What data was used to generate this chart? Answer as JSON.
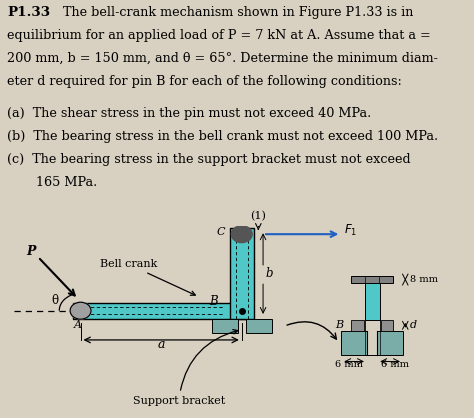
{
  "bg_page": "#d8d0c0",
  "cyan": "#50c8c8",
  "bracket_gray": "#7aada8",
  "dark_gray": "#606060",
  "med_gray": "#909090",
  "text_color": "#000000",
  "text_lines": [
    "equilibrium for an applied load of P = 7 kN at A. Assume that a =",
    "200 mm, b = 150 mm, and θ = 65°. Determine the minimum diam-",
    "eter d required for pin B for each of the following conditions:"
  ],
  "cond_lines": [
    "(a)  The shear stress in the pin must not exceed 40 MPa.",
    "(b)  The bearing stress in the bell crank must not exceed 100 MPa.",
    "(c)  The bearing stress in the support bracket must not exceed",
    "      165 MPa."
  ]
}
